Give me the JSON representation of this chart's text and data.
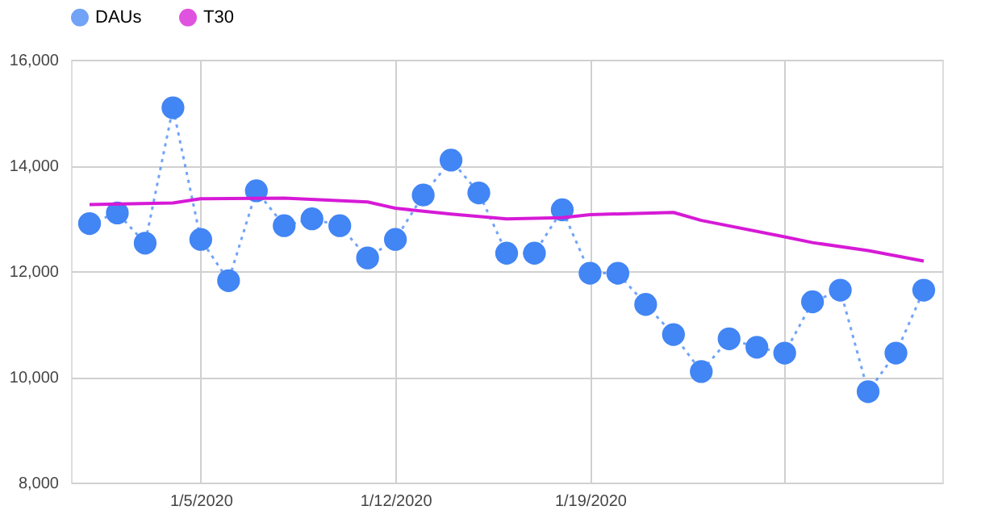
{
  "chart_data": {
    "type": "line",
    "x": [
      "2020-01-01",
      "2020-01-02",
      "2020-01-03",
      "2020-01-04",
      "2020-01-05",
      "2020-01-06",
      "2020-01-07",
      "2020-01-08",
      "2020-01-09",
      "2020-01-10",
      "2020-01-11",
      "2020-01-12",
      "2020-01-13",
      "2020-01-14",
      "2020-01-15",
      "2020-01-16",
      "2020-01-17",
      "2020-01-18",
      "2020-01-19",
      "2020-01-20",
      "2020-01-21",
      "2020-01-22",
      "2020-01-23",
      "2020-01-24",
      "2020-01-25",
      "2020-01-26",
      "2020-01-27",
      "2020-01-28",
      "2020-01-29",
      "2020-01-30",
      "2020-01-31"
    ],
    "series": [
      {
        "name": "DAUs",
        "color": "#4285f4",
        "marker": "circle",
        "line_style": "dotted",
        "values": [
          12900,
          13100,
          12530,
          15090,
          12600,
          11820,
          13520,
          12860,
          12990,
          12860,
          12250,
          12600,
          13440,
          14100,
          13480,
          12340,
          12340,
          13160,
          11960,
          11960,
          11370,
          10800,
          10100,
          10720,
          10560,
          10450,
          11420,
          11640,
          9720,
          10450,
          11640
        ]
      },
      {
        "name": "T30",
        "color": "#d61ad6",
        "marker": "none",
        "line_style": "solid",
        "x": [
          "2020-01-01",
          "2020-01-04",
          "2020-01-05",
          "2020-01-08",
          "2020-01-11",
          "2020-01-12",
          "2020-01-14",
          "2020-01-16",
          "2020-01-18",
          "2020-01-19",
          "2020-01-22",
          "2020-01-23",
          "2020-01-26",
          "2020-01-27",
          "2020-01-29",
          "2020-01-31"
        ],
        "values": [
          13260,
          13290,
          13370,
          13380,
          13310,
          13190,
          13080,
          12990,
          13010,
          13070,
          13110,
          12960,
          12650,
          12540,
          12390,
          12190
        ]
      }
    ],
    "xlim": [
      "2019-12-31T08:00",
      "2020-01-31T16:00"
    ],
    "xticks": [
      {
        "value": "2020-01-05",
        "label": "1/5/2020"
      },
      {
        "value": "2020-01-12",
        "label": "1/12/2020"
      },
      {
        "value": "2020-01-19",
        "label": "1/19/2020"
      },
      {
        "value": "2020-01-26",
        "label": null
      }
    ],
    "ylim": [
      8000,
      16000
    ],
    "yticks": [
      {
        "value": 8000,
        "label": "8,000"
      },
      {
        "value": 10000,
        "label": "10,000"
      },
      {
        "value": 12000,
        "label": "12,000"
      },
      {
        "value": 14000,
        "label": "14,000"
      },
      {
        "value": 16000,
        "label": "16,000"
      }
    ],
    "grid": true,
    "legend": "top"
  }
}
